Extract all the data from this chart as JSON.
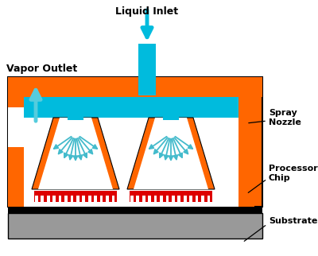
{
  "bg_color": "#ffffff",
  "orange": "#FF6600",
  "cyan": "#00BBDD",
  "red": "#DD0000",
  "gray": "#999999",
  "white": "#ffffff",
  "black": "#000000",
  "arrow_cyan": "#44BBCC",
  "title": "Liquid Inlet",
  "vapor_label": "Vapor Outlet",
  "spray_label": "Spray\nNozzle",
  "chip_label": "Processor\nChip",
  "substrate_label": "Substrate",
  "fig_w": 4.0,
  "fig_h": 3.22,
  "dpi": 100
}
